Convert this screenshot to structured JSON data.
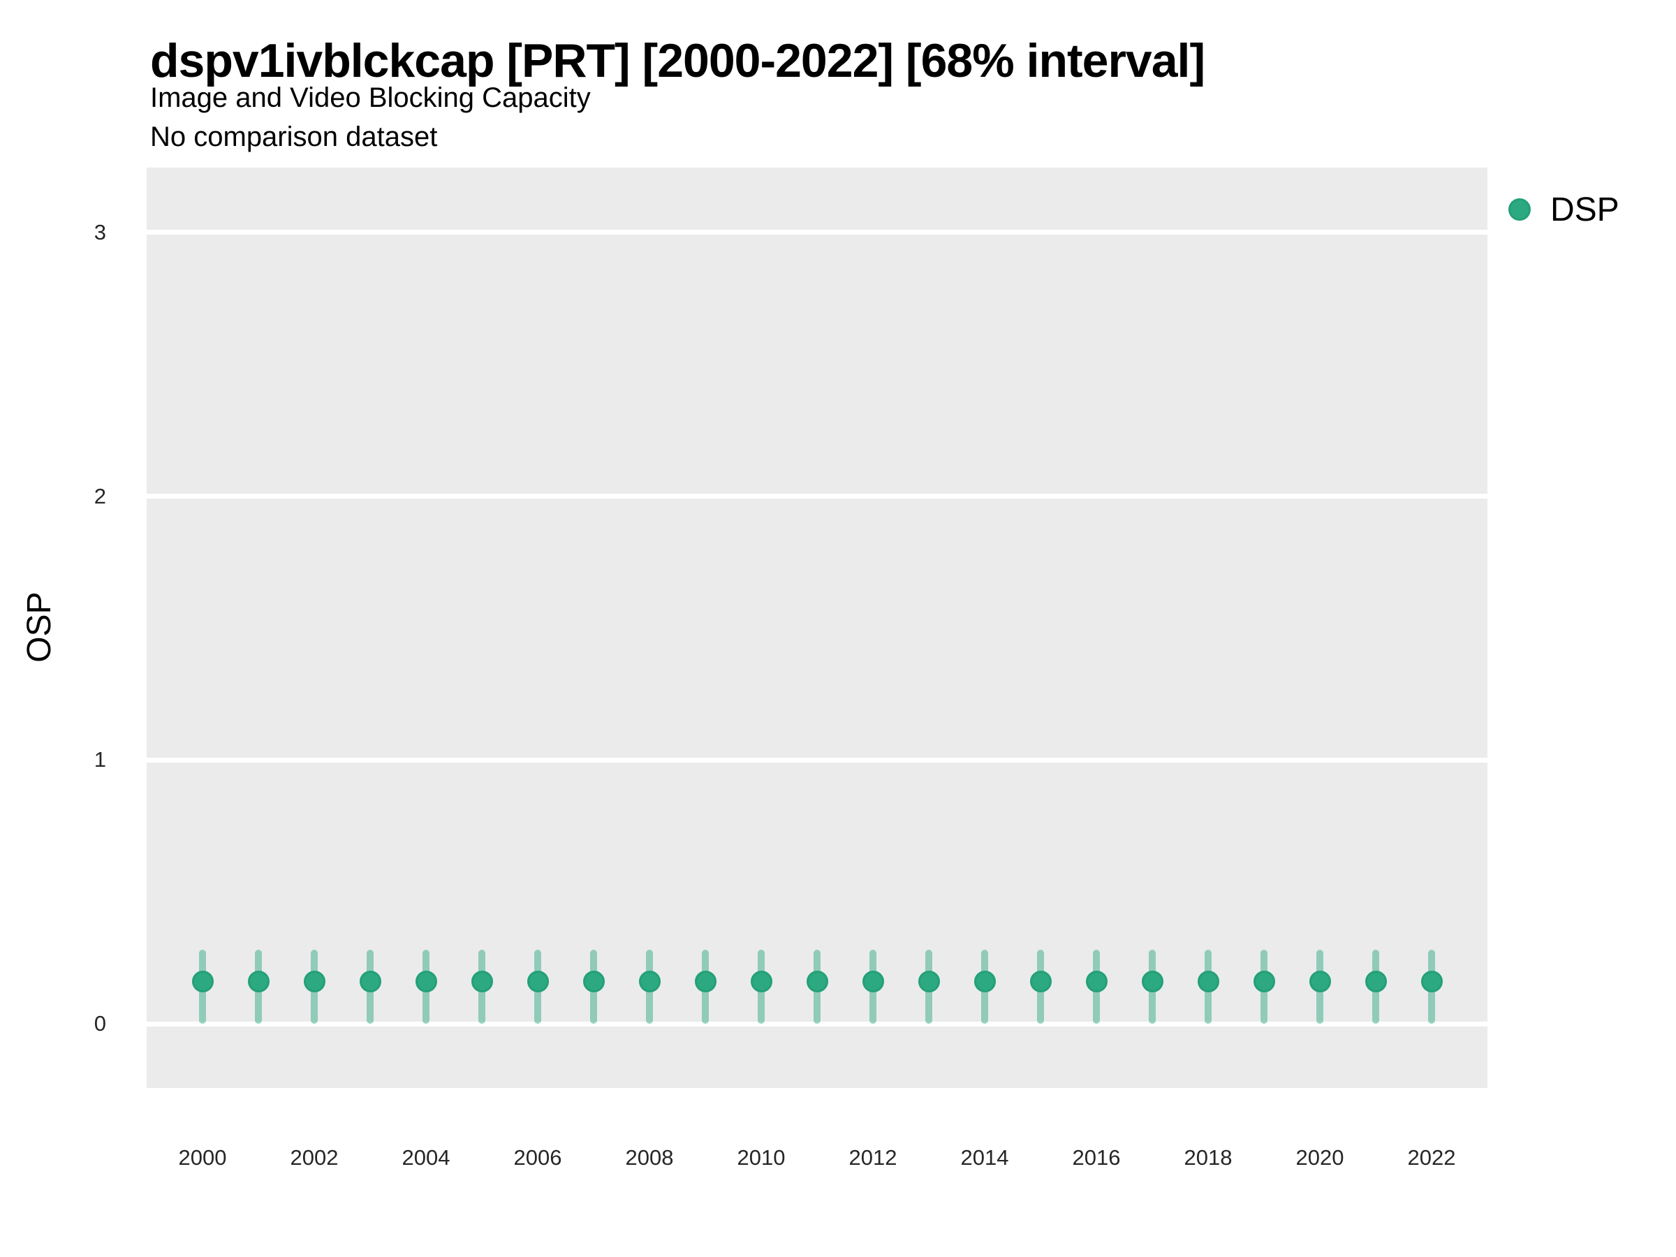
{
  "header": {
    "title": "dspv1ivblckcap [PRT] [2000-2022] [68% interval]",
    "subtitle": "Image and Video Blocking Capacity",
    "note": "No comparison dataset"
  },
  "y_axis": {
    "title": "OSP",
    "ticks": [
      {
        "value": 0,
        "label": "0"
      },
      {
        "value": 1,
        "label": "1"
      },
      {
        "value": 2,
        "label": "2"
      },
      {
        "value": 3,
        "label": "3"
      }
    ]
  },
  "x_axis": {
    "ticks": [
      {
        "value": 2000,
        "label": "2000"
      },
      {
        "value": 2002,
        "label": "2002"
      },
      {
        "value": 2004,
        "label": "2004"
      },
      {
        "value": 2006,
        "label": "2006"
      },
      {
        "value": 2008,
        "label": "2008"
      },
      {
        "value": 2010,
        "label": "2010"
      },
      {
        "value": 2012,
        "label": "2012"
      },
      {
        "value": 2014,
        "label": "2014"
      },
      {
        "value": 2016,
        "label": "2016"
      },
      {
        "value": 2018,
        "label": "2018"
      },
      {
        "value": 2020,
        "label": "2020"
      },
      {
        "value": 2022,
        "label": "2022"
      }
    ]
  },
  "legend": {
    "items": [
      {
        "label": "DSP",
        "marker": "circle",
        "color": "#2DA982"
      }
    ]
  },
  "colors": {
    "panel_bg": "#EBEBEB",
    "gridline": "#FFFFFF",
    "point_fill": "#2DA982",
    "point_stroke": "#24A078",
    "interval_bar": "rgba(43,168,130,0.48)",
    "title_text": "#000000",
    "tick_text": "#262626"
  },
  "chart_data": {
    "type": "scatter",
    "title": "dspv1ivblckcap [PRT] [2000-2022] [68% interval]",
    "subtitle": "Image and Video Blocking Capacity",
    "note": "No comparison dataset",
    "xlabel": "",
    "ylabel": "OSP",
    "interval": "68%",
    "xlim": [
      1999,
      2023
    ],
    "ylim": [
      -0.24,
      3.25
    ],
    "grid": "horizontal major white gridlines on gray panel, no minor gridlines",
    "legend_position": "right",
    "x": [
      2000,
      2001,
      2002,
      2003,
      2004,
      2005,
      2006,
      2007,
      2008,
      2009,
      2010,
      2011,
      2012,
      2013,
      2014,
      2015,
      2016,
      2017,
      2018,
      2019,
      2020,
      2021,
      2022
    ],
    "series": [
      {
        "name": "DSP",
        "y": [
          0.16,
          0.16,
          0.16,
          0.16,
          0.16,
          0.16,
          0.16,
          0.16,
          0.16,
          0.16,
          0.16,
          0.16,
          0.16,
          0.16,
          0.16,
          0.16,
          0.16,
          0.16,
          0.16,
          0.16,
          0.16,
          0.16,
          0.16
        ],
        "lower": [
          0.0,
          0.0,
          0.0,
          0.0,
          0.0,
          0.0,
          0.0,
          0.0,
          0.0,
          0.0,
          0.0,
          0.0,
          0.0,
          0.0,
          0.0,
          0.0,
          0.0,
          0.0,
          0.0,
          0.0,
          0.0,
          0.0,
          0.0
        ],
        "upper": [
          0.28,
          0.28,
          0.28,
          0.28,
          0.28,
          0.28,
          0.28,
          0.28,
          0.28,
          0.28,
          0.28,
          0.28,
          0.28,
          0.28,
          0.28,
          0.28,
          0.28,
          0.28,
          0.28,
          0.28,
          0.28,
          0.28,
          0.28
        ]
      }
    ]
  }
}
